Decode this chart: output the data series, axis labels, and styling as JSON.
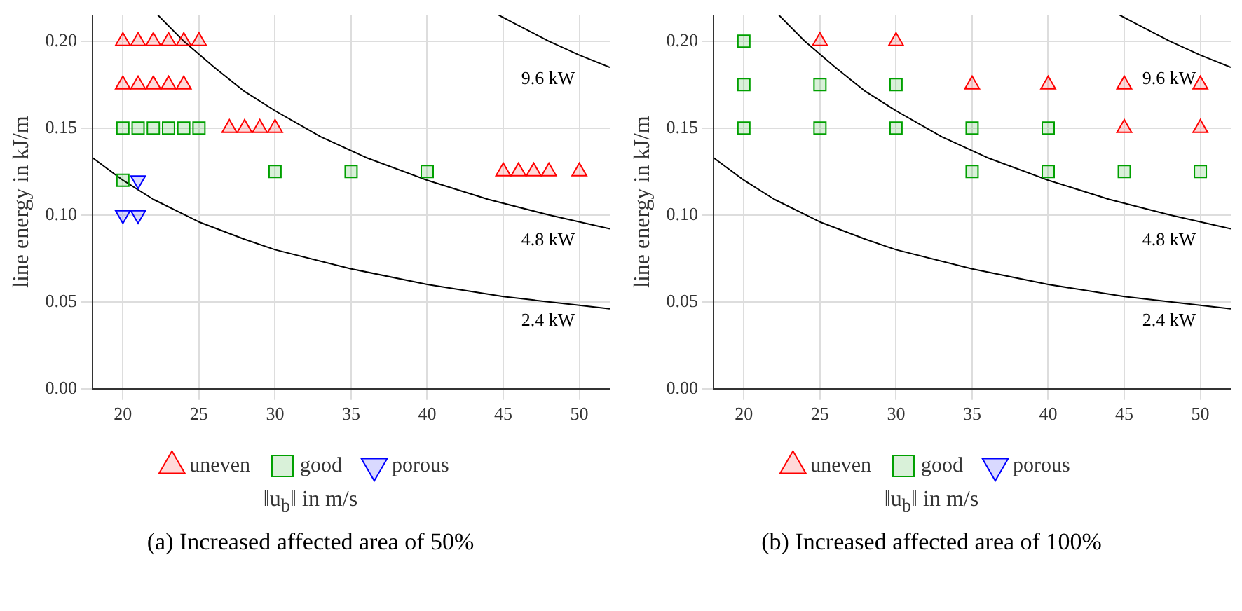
{
  "chart_data": [
    {
      "type": "scatter",
      "title": "(a) Increased affected area of 50%",
      "xlabel": "‖u$_{b}$‖ in m/s",
      "ylabel": "line energy in kJ/m",
      "xlim": [
        18,
        52
      ],
      "ylim": [
        0,
        0.215
      ],
      "xticks": [
        20,
        25,
        30,
        35,
        40,
        45,
        50
      ],
      "yticks": [
        {
          "value": 0,
          "label": "0.00"
        },
        {
          "value": 0.05,
          "label": "0.05"
        },
        {
          "value": 0.1,
          "label": "0.10"
        },
        {
          "value": 0.15,
          "label": "0.15"
        },
        {
          "value": 0.2,
          "label": "0.20"
        }
      ],
      "grid": true,
      "legend": "bottom",
      "series": [
        {
          "name": "uneven",
          "color": "#ff0000",
          "marker": "triangle",
          "x": [
            20,
            21,
            22,
            23,
            24,
            25,
            20,
            21,
            22,
            23,
            24,
            27,
            28,
            29,
            30,
            45,
            46,
            47,
            48,
            50
          ],
          "values": [
            0.2,
            0.2,
            0.2,
            0.2,
            0.2,
            0.2,
            0.175,
            0.175,
            0.175,
            0.175,
            0.175,
            0.15,
            0.15,
            0.15,
            0.15,
            0.125,
            0.125,
            0.125,
            0.125,
            0.125
          ]
        },
        {
          "name": "good",
          "color": "#00a000",
          "marker": "square",
          "x": [
            20,
            21,
            22,
            23,
            24,
            25,
            20,
            30,
            35,
            40
          ],
          "values": [
            0.15,
            0.15,
            0.15,
            0.15,
            0.15,
            0.15,
            0.12,
            0.125,
            0.125,
            0.125
          ]
        },
        {
          "name": "porous",
          "color": "#0000ff",
          "marker": "triangle-down",
          "x": [
            21,
            20,
            21
          ],
          "values": [
            0.12,
            0.1,
            0.1
          ]
        },
        {
          "name": "2.4 kW",
          "type": "line",
          "color": "#000000",
          "marker": "none",
          "x": [
            18,
            20,
            22,
            25,
            28,
            30,
            35,
            40,
            45,
            50,
            52
          ],
          "values": [
            0.133,
            0.12,
            0.109,
            0.096,
            0.086,
            0.08,
            0.069,
            0.06,
            0.053,
            0.048,
            0.046
          ]
        },
        {
          "name": "4.8 kW",
          "type": "line",
          "color": "#000000",
          "marker": "none",
          "x": [
            22.3,
            24,
            26,
            28,
            30,
            33,
            36,
            40,
            44,
            48,
            52
          ],
          "values": [
            0.215,
            0.2,
            0.185,
            0.171,
            0.16,
            0.145,
            0.133,
            0.12,
            0.109,
            0.1,
            0.092
          ]
        },
        {
          "name": "9.6 kW",
          "type": "line",
          "color": "#000000",
          "marker": "none",
          "x": [
            44.7,
            46,
            48,
            50,
            52
          ],
          "values": [
            0.215,
            0.209,
            0.2,
            0.192,
            0.185
          ]
        }
      ]
    },
    {
      "type": "scatter",
      "title": "(b) Increased affected area of 100%",
      "xlabel": "‖u$_{b}$‖ in m/s",
      "ylabel": "line energy in kJ/m",
      "xlim": [
        18,
        52
      ],
      "ylim": [
        0,
        0.215
      ],
      "xticks": [
        20,
        25,
        30,
        35,
        40,
        45,
        50
      ],
      "yticks": [
        {
          "value": 0,
          "label": "0.00"
        },
        {
          "value": 0.05,
          "label": "0.05"
        },
        {
          "value": 0.1,
          "label": "0.10"
        },
        {
          "value": 0.15,
          "label": "0.15"
        },
        {
          "value": 0.2,
          "label": "0.20"
        }
      ],
      "grid": true,
      "legend": "bottom",
      "series": [
        {
          "name": "uneven",
          "color": "#ff0000",
          "marker": "triangle",
          "x": [
            25,
            30,
            35,
            40,
            45,
            50,
            45,
            50
          ],
          "values": [
            0.2,
            0.2,
            0.175,
            0.175,
            0.175,
            0.175,
            0.15,
            0.15
          ]
        },
        {
          "name": "good",
          "color": "#00a000",
          "marker": "square",
          "x": [
            20,
            20,
            25,
            30,
            20,
            25,
            30,
            35,
            40,
            35,
            40,
            45,
            50
          ],
          "values": [
            0.2,
            0.175,
            0.175,
            0.175,
            0.15,
            0.15,
            0.15,
            0.15,
            0.15,
            0.125,
            0.125,
            0.125,
            0.125
          ]
        },
        {
          "name": "porous",
          "color": "#0000ff",
          "marker": "triangle-down"
        },
        {
          "name": "2.4 kW",
          "type": "line",
          "color": "#000000",
          "marker": "none",
          "x": [
            18,
            20,
            22,
            25,
            28,
            30,
            35,
            40,
            45,
            50,
            52
          ],
          "values": [
            0.133,
            0.12,
            0.109,
            0.096,
            0.086,
            0.08,
            0.069,
            0.06,
            0.053,
            0.048,
            0.046
          ]
        },
        {
          "name": "4.8 kW",
          "type": "line",
          "color": "#000000",
          "marker": "none",
          "x": [
            22.3,
            24,
            26,
            28,
            30,
            33,
            36,
            40,
            44,
            48,
            52
          ],
          "values": [
            0.215,
            0.2,
            0.185,
            0.171,
            0.16,
            0.145,
            0.133,
            0.12,
            0.109,
            0.1,
            0.092
          ]
        },
        {
          "name": "9.6 kW",
          "type": "line",
          "color": "#000000",
          "marker": "none",
          "x": [
            44.7,
            46,
            48,
            50,
            52
          ],
          "values": [
            0.215,
            0.209,
            0.2,
            0.192,
            0.185
          ]
        }
      ]
    }
  ]
}
